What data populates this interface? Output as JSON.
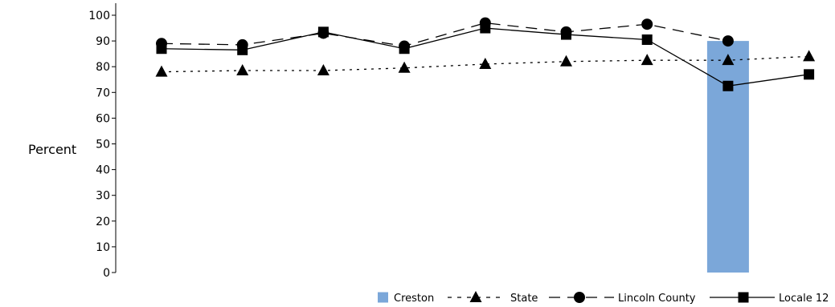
{
  "chart_data": {
    "type": "line",
    "ylabel": "Percent",
    "ylim": [
      0,
      100
    ],
    "yticks": [
      "0",
      "10",
      "20",
      "30",
      "40",
      "50",
      "60",
      "70",
      "80",
      "90",
      "100"
    ],
    "x_count": 9,
    "series": [
      {
        "name": "Creston",
        "type": "bar",
        "color": "#7ba7d9",
        "values": [
          null,
          null,
          null,
          null,
          null,
          null,
          null,
          90,
          null
        ]
      },
      {
        "name": "State",
        "type": "line",
        "line_style": "dotted",
        "marker": "triangle",
        "values": [
          78,
          78.5,
          78.5,
          79.5,
          81,
          82,
          82.5,
          82.5,
          84
        ]
      },
      {
        "name": "Lincoln County",
        "type": "line",
        "line_style": "dashed",
        "marker": "circle",
        "values": [
          89,
          88.5,
          93,
          88,
          97,
          93.5,
          96.5,
          90,
          null
        ]
      },
      {
        "name": "Locale 12",
        "type": "line",
        "line_style": "solid",
        "marker": "square",
        "values": [
          87,
          86.5,
          93.5,
          87,
          95,
          92.5,
          90.5,
          72.5,
          77
        ]
      }
    ],
    "legend": {
      "position": "bottom-right",
      "items": [
        "Creston",
        "State",
        "Lincoln County",
        "Locale 12"
      ]
    }
  }
}
